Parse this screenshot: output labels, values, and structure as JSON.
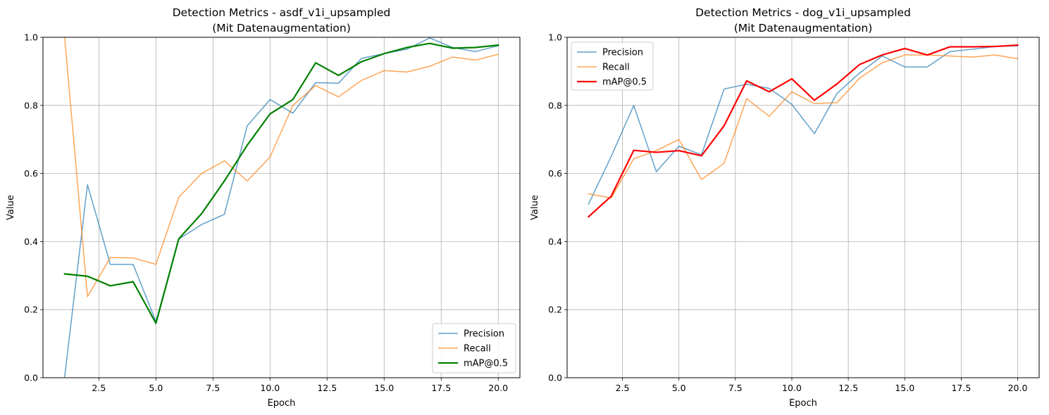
{
  "chart_data": [
    {
      "type": "line",
      "title": "Detection Metrics - asdf_v1i_upsampled",
      "subtitle": "(Mit Datenaugmentation)",
      "xlabel": "Epoch",
      "ylabel": "Value",
      "xlim": [
        0.05,
        20.95
      ],
      "ylim": [
        0,
        1
      ],
      "xticks": [
        "2.5",
        "5.0",
        "7.5",
        "10.0",
        "12.5",
        "15.0",
        "17.5",
        "20.0"
      ],
      "yticks": [
        "0.0",
        "0.2",
        "0.4",
        "0.6",
        "0.8",
        "1.0"
      ],
      "grid": true,
      "legend_position": "bottom-right",
      "x": [
        1,
        2,
        3,
        4,
        5,
        6,
        7,
        8,
        9,
        10,
        11,
        12,
        13,
        14,
        15,
        16,
        17,
        18,
        19,
        20
      ],
      "series": [
        {
          "name": "Precision",
          "color": "#1f77b4",
          "opacity": 0.7,
          "width": 1.5,
          "values": [
            0.003,
            0.567,
            0.333,
            0.333,
            0.165,
            0.407,
            0.45,
            0.48,
            0.74,
            0.817,
            0.777,
            0.867,
            0.865,
            0.938,
            0.952,
            0.965,
            0.998,
            0.97,
            0.958,
            0.975
          ]
        },
        {
          "name": "Recall",
          "color": "#ff7f0e",
          "opacity": 0.7,
          "width": 1.5,
          "values": [
            1.0,
            0.238,
            0.353,
            0.352,
            0.333,
            0.53,
            0.6,
            0.637,
            0.578,
            0.648,
            0.8,
            0.858,
            0.825,
            0.873,
            0.902,
            0.898,
            0.915,
            0.942,
            0.933,
            0.95
          ]
        },
        {
          "name": "mAP@0.5",
          "color": "#008000",
          "opacity": 1.0,
          "width": 2.2,
          "values": [
            0.305,
            0.298,
            0.27,
            0.282,
            0.16,
            0.408,
            0.482,
            0.578,
            0.683,
            0.775,
            0.817,
            0.925,
            0.888,
            0.928,
            0.952,
            0.97,
            0.982,
            0.968,
            0.97,
            0.977
          ]
        }
      ]
    },
    {
      "type": "line",
      "title": "Detection Metrics - dog_v1i_upsampled",
      "subtitle": "(Mit Datenaugmentation)",
      "xlabel": "Epoch",
      "ylabel": "Value",
      "xlim": [
        0.05,
        20.95
      ],
      "ylim": [
        0,
        1
      ],
      "xticks": [
        "2.5",
        "5.0",
        "7.5",
        "10.0",
        "12.5",
        "15.0",
        "17.5",
        "20.0"
      ],
      "yticks": [
        "0.0",
        "0.2",
        "0.4",
        "0.6",
        "0.8",
        "1.0"
      ],
      "grid": true,
      "legend_position": "top-left",
      "x": [
        1,
        2,
        3,
        4,
        5,
        6,
        7,
        8,
        9,
        10,
        11,
        12,
        13,
        14,
        15,
        16,
        17,
        18,
        19,
        20
      ],
      "series": [
        {
          "name": "Precision",
          "color": "#1f77b4",
          "opacity": 0.7,
          "width": 1.5,
          "values": [
            0.51,
            0.65,
            0.8,
            0.605,
            0.68,
            0.655,
            0.848,
            0.862,
            0.85,
            0.803,
            0.717,
            0.835,
            0.895,
            0.945,
            0.913,
            0.913,
            0.958,
            0.965,
            0.973,
            0.975
          ]
        },
        {
          "name": "Recall",
          "color": "#ff7f0e",
          "opacity": 0.7,
          "width": 1.5,
          "values": [
            0.54,
            0.528,
            0.643,
            0.667,
            0.7,
            0.582,
            0.63,
            0.82,
            0.768,
            0.84,
            0.805,
            0.808,
            0.88,
            0.925,
            0.948,
            0.948,
            0.945,
            0.942,
            0.948,
            0.937
          ]
        },
        {
          "name": "mAP@0.5",
          "color": "#ff0000",
          "opacity": 1.0,
          "width": 2.2,
          "values": [
            0.473,
            0.533,
            0.668,
            0.662,
            0.667,
            0.652,
            0.74,
            0.872,
            0.84,
            0.878,
            0.815,
            0.863,
            0.92,
            0.948,
            0.967,
            0.948,
            0.972,
            0.972,
            0.973,
            0.977
          ]
        }
      ]
    }
  ]
}
